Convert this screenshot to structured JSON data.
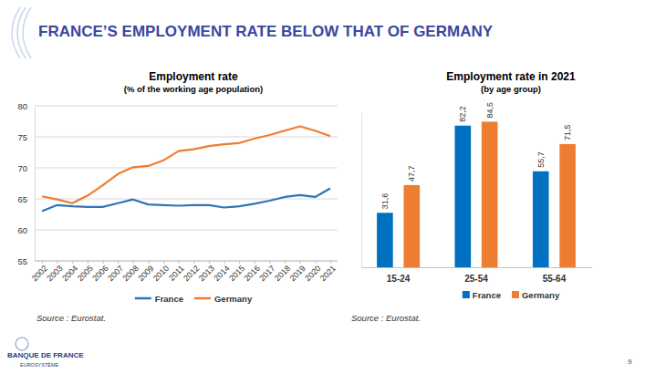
{
  "slide": {
    "title": "FRANCE’S EMPLOYMENT RATE BELOW THAT OF GERMANY",
    "logo": "BANQUE DE FRANCE",
    "logo_subtitle": "EUROSYSTÈME",
    "page_number": 9
  },
  "chart_data": [
    {
      "type": "line",
      "title": "Employment rate",
      "subtitle": "(% of the working age population)",
      "categories": [
        "2002",
        "2003",
        "2004",
        "2005",
        "2006",
        "2007",
        "2008",
        "2009",
        "2010",
        "2011",
        "2012",
        "2013",
        "2014",
        "2015",
        "2016",
        "2017",
        "2018",
        "2019",
        "2020",
        "2021"
      ],
      "series": [
        {
          "name": "France",
          "color": "#2e75b6",
          "values": [
            63.0,
            64.0,
            63.8,
            63.7,
            63.7,
            64.3,
            64.9,
            64.1,
            64.0,
            63.9,
            64.0,
            64.0,
            63.6,
            63.8,
            64.2,
            64.7,
            65.3,
            65.6,
            65.3,
            66.7
          ]
        },
        {
          "name": "Germany",
          "color": "#ed7d31",
          "values": [
            65.4,
            64.9,
            64.3,
            65.5,
            67.2,
            69.0,
            70.1,
            70.3,
            71.2,
            72.7,
            73.0,
            73.5,
            73.8,
            74.0,
            74.7,
            75.3,
            76.0,
            76.7,
            76.0,
            75.1
          ]
        }
      ],
      "ylim": [
        55,
        80
      ],
      "yticks": [
        55,
        60,
        65,
        70,
        75,
        80
      ],
      "grid": true,
      "legend": "bottom",
      "source": "Source : Eurostat."
    },
    {
      "type": "bar",
      "title": "Employment rate in 2021",
      "subtitle": "(by age group)",
      "categories": [
        "15-24",
        "25-54",
        "55-64"
      ],
      "series": [
        {
          "name": "France",
          "color": "#0070c0",
          "values": [
            31.6,
            82.2,
            55.7
          ],
          "value_labels": [
            "31,6",
            "82,2",
            "55,7"
          ]
        },
        {
          "name": "Germany",
          "color": "#ed7d31",
          "values": [
            47.7,
            84.5,
            71.5
          ],
          "value_labels": [
            "47,7",
            "84,5",
            "71,5"
          ]
        }
      ],
      "ylim": [
        0,
        90
      ],
      "yticks": [],
      "tick_labels": "x",
      "data_labels": true,
      "legend": "bottom",
      "source": "Source : Eurostat."
    }
  ]
}
